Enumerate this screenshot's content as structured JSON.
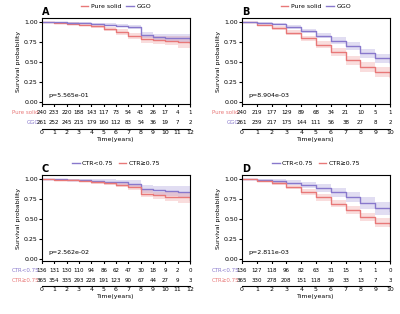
{
  "chart_data": [
    {
      "type": "step",
      "title": "A",
      "x_label": "Time(years)",
      "y_label": "Survival probability",
      "annotations": [
        "p=5.565e-01"
      ],
      "legend": "upper center",
      "xlim": [
        0,
        12
      ],
      "ylim": [
        -0.02,
        1.05
      ],
      "xticks": [
        0,
        1,
        2,
        3,
        4,
        5,
        6,
        7,
        8,
        9,
        10,
        11,
        12
      ],
      "yticks": [
        {
          "value": 0.0,
          "label": "0.00"
        },
        {
          "value": 0.25,
          "label": "0.25"
        },
        {
          "value": 0.5,
          "label": "0.50"
        },
        {
          "value": 0.75,
          "label": "0.75"
        },
        {
          "value": 1.0,
          "label": "1.00"
        }
      ],
      "x": [
        0,
        1,
        2,
        3,
        4,
        5,
        6,
        7,
        8,
        9,
        10,
        11,
        12
      ],
      "series": [
        {
          "name": "Pure solid",
          "color": "#e87878",
          "values": [
            1.0,
            0.99,
            0.98,
            0.965,
            0.945,
            0.915,
            0.875,
            0.83,
            0.785,
            0.775,
            0.765,
            0.755,
            0.735
          ],
          "ci_lower": [
            1.0,
            0.982,
            0.965,
            0.945,
            0.92,
            0.887,
            0.843,
            0.792,
            0.743,
            0.728,
            0.71,
            0.682,
            0.638
          ],
          "ci_upper": [
            1.0,
            0.998,
            0.995,
            0.985,
            0.97,
            0.943,
            0.907,
            0.868,
            0.827,
            0.822,
            0.82,
            0.828,
            0.832
          ]
        },
        {
          "name": "GGO",
          "color": "#8878cc",
          "values": [
            1.0,
            0.997,
            0.992,
            0.987,
            0.978,
            0.968,
            0.955,
            0.938,
            0.835,
            0.815,
            0.805,
            0.795,
            0.785
          ],
          "ci_lower": [
            1.0,
            0.991,
            0.982,
            0.976,
            0.964,
            0.951,
            0.933,
            0.912,
            0.798,
            0.776,
            0.762,
            0.742,
            0.718
          ],
          "ci_upper": [
            1.0,
            1.0,
            1.0,
            0.998,
            0.992,
            0.985,
            0.977,
            0.964,
            0.872,
            0.854,
            0.848,
            0.848,
            0.852
          ]
        }
      ],
      "risk_table": {
        "x": [
          0,
          1,
          2,
          3,
          4,
          5,
          6,
          7,
          8,
          9,
          10,
          11,
          12
        ],
        "rows": [
          {
            "label": "Pure solid",
            "values": [
              240,
              233,
              220,
              188,
              143,
              117,
              73,
              54,
              43,
              26,
              17,
              4,
              1
            ]
          },
          {
            "label": "GGO",
            "values": [
              261,
              252,
              245,
              215,
              179,
              160,
              112,
              83,
              54,
              36,
              19,
              7,
              2
            ]
          }
        ]
      }
    },
    {
      "type": "step",
      "title": "B",
      "x_label": "Time(years)",
      "y_label": "Survival probability",
      "annotations": [
        "p=8.904e-03"
      ],
      "legend": "upper center",
      "xlim": [
        0,
        10
      ],
      "ylim": [
        -0.02,
        1.05
      ],
      "xticks": [
        0,
        1,
        2,
        3,
        4,
        5,
        6,
        7,
        8,
        9,
        10
      ],
      "yticks": [
        {
          "value": 0.0,
          "label": "0.00"
        },
        {
          "value": 0.25,
          "label": "0.25"
        },
        {
          "value": 0.5,
          "label": "0.50"
        },
        {
          "value": 0.75,
          "label": "0.75"
        },
        {
          "value": 1.0,
          "label": "1.00"
        }
      ],
      "x": [
        0,
        1,
        2,
        3,
        4,
        5,
        6,
        7,
        8,
        9,
        10
      ],
      "series": [
        {
          "name": "Pure solid",
          "color": "#e87878",
          "values": [
            1.0,
            0.968,
            0.928,
            0.868,
            0.795,
            0.715,
            0.625,
            0.525,
            0.44,
            0.375,
            0.315
          ],
          "ci_lower": [
            1.0,
            0.952,
            0.905,
            0.839,
            0.759,
            0.672,
            0.575,
            0.47,
            0.382,
            0.31,
            0.245
          ],
          "ci_upper": [
            1.0,
            0.984,
            0.951,
            0.897,
            0.831,
            0.758,
            0.675,
            0.58,
            0.498,
            0.44,
            0.385
          ]
        },
        {
          "name": "GGO",
          "color": "#8878cc",
          "values": [
            1.0,
            0.992,
            0.972,
            0.938,
            0.888,
            0.832,
            0.768,
            0.698,
            0.612,
            0.548,
            0.492
          ],
          "ci_lower": [
            1.0,
            0.982,
            0.957,
            0.916,
            0.858,
            0.796,
            0.725,
            0.648,
            0.558,
            0.49,
            0.428
          ],
          "ci_upper": [
            1.0,
            1.0,
            0.987,
            0.96,
            0.918,
            0.868,
            0.811,
            0.748,
            0.666,
            0.606,
            0.556
          ]
        }
      ],
      "risk_table": {
        "x": [
          0,
          1,
          2,
          3,
          4,
          5,
          6,
          7,
          8,
          9,
          10
        ],
        "rows": [
          {
            "label": "Pure solid",
            "values": [
              240,
              219,
              177,
              129,
              89,
              68,
              34,
              21,
              10,
              5,
              1
            ]
          },
          {
            "label": "GGO",
            "values": [
              261,
              239,
              217,
              175,
              144,
              111,
              56,
              38,
              27,
              8,
              2
            ]
          }
        ]
      }
    },
    {
      "type": "step",
      "title": "C",
      "x_label": "Time(years)",
      "y_label": "Survival probability",
      "annotations": [
        "p=2.562e-02"
      ],
      "legend": "upper center",
      "xlim": [
        0,
        12
      ],
      "ylim": [
        -0.02,
        1.05
      ],
      "xticks": [
        0,
        1,
        2,
        3,
        4,
        5,
        6,
        7,
        8,
        9,
        10,
        11,
        12
      ],
      "yticks": [
        {
          "value": 0.0,
          "label": "0.00"
        },
        {
          "value": 0.25,
          "label": "0.25"
        },
        {
          "value": 0.5,
          "label": "0.50"
        },
        {
          "value": 0.75,
          "label": "0.75"
        },
        {
          "value": 1.0,
          "label": "1.00"
        }
      ],
      "x": [
        0,
        1,
        2,
        3,
        4,
        5,
        6,
        7,
        8,
        9,
        10,
        11,
        12
      ],
      "series": [
        {
          "name": "CTR<0.75",
          "color": "#8878cc",
          "values": [
            1.0,
            0.997,
            0.993,
            0.988,
            0.978,
            0.968,
            0.958,
            0.94,
            0.875,
            0.862,
            0.852,
            0.842,
            0.84
          ],
          "ci_lower": [
            1.0,
            0.988,
            0.978,
            0.968,
            0.952,
            0.938,
            0.922,
            0.898,
            0.822,
            0.806,
            0.79,
            0.768,
            0.748
          ],
          "ci_upper": [
            1.0,
            1.0,
            1.0,
            1.0,
            1.0,
            0.998,
            0.994,
            0.982,
            0.928,
            0.918,
            0.914,
            0.916,
            0.932
          ]
        },
        {
          "name": "CTR≥0.75",
          "color": "#e87878",
          "values": [
            1.0,
            0.992,
            0.986,
            0.977,
            0.962,
            0.946,
            0.928,
            0.899,
            0.818,
            0.798,
            0.782,
            0.772,
            0.745
          ],
          "ci_lower": [
            1.0,
            0.985,
            0.975,
            0.962,
            0.944,
            0.924,
            0.901,
            0.866,
            0.778,
            0.752,
            0.728,
            0.704,
            0.662
          ],
          "ci_upper": [
            1.0,
            0.999,
            0.997,
            0.992,
            0.98,
            0.968,
            0.955,
            0.932,
            0.858,
            0.844,
            0.836,
            0.84,
            0.828
          ]
        }
      ],
      "risk_table": {
        "x": [
          0,
          1,
          2,
          3,
          4,
          5,
          6,
          7,
          8,
          9,
          10,
          11,
          12
        ],
        "rows": [
          {
            "label": "CTR<0.75",
            "values": [
              136,
              131,
              130,
              110,
              94,
              86,
              62,
              47,
              30,
              18,
              9,
              2,
              0
            ]
          },
          {
            "label": "CTR≥0.75",
            "values": [
              365,
              354,
              335,
              293,
              228,
              191,
              123,
              90,
              67,
              44,
              27,
              9,
              3
            ]
          }
        ]
      }
    },
    {
      "type": "step",
      "title": "D",
      "x_label": "Time(years)",
      "y_label": "Survival probability",
      "annotations": [
        "p=2.811e-03"
      ],
      "legend": "upper center",
      "xlim": [
        0,
        10
      ],
      "ylim": [
        -0.02,
        1.05
      ],
      "xticks": [
        0,
        1,
        2,
        3,
        4,
        5,
        6,
        7,
        8,
        9,
        10
      ],
      "yticks": [
        {
          "value": 0.0,
          "label": "0.00"
        },
        {
          "value": 0.25,
          "label": "0.25"
        },
        {
          "value": 0.5,
          "label": "0.50"
        },
        {
          "value": 0.75,
          "label": "0.75"
        },
        {
          "value": 1.0,
          "label": "1.00"
        }
      ],
      "x": [
        0,
        1,
        2,
        3,
        4,
        5,
        6,
        7,
        8,
        9,
        10
      ],
      "series": [
        {
          "name": "CTR<0.75",
          "color": "#8878cc",
          "values": [
            1.0,
            0.992,
            0.978,
            0.955,
            0.925,
            0.885,
            0.838,
            0.778,
            0.698,
            0.638,
            0.598
          ],
          "ci_lower": [
            1.0,
            0.978,
            0.956,
            0.924,
            0.886,
            0.838,
            0.782,
            0.712,
            0.625,
            0.558,
            0.502
          ],
          "ci_upper": [
            1.0,
            1.0,
            1.0,
            0.986,
            0.964,
            0.932,
            0.894,
            0.844,
            0.771,
            0.718,
            0.694
          ]
        },
        {
          "name": "CTR≥0.75",
          "color": "#e87878",
          "values": [
            1.0,
            0.975,
            0.945,
            0.898,
            0.838,
            0.772,
            0.695,
            0.612,
            0.525,
            0.458,
            0.415
          ],
          "ci_lower": [
            1.0,
            0.96,
            0.924,
            0.87,
            0.804,
            0.732,
            0.65,
            0.562,
            0.472,
            0.398,
            0.345
          ],
          "ci_upper": [
            1.0,
            0.99,
            0.966,
            0.926,
            0.872,
            0.812,
            0.74,
            0.662,
            0.578,
            0.518,
            0.485
          ]
        }
      ],
      "risk_table": {
        "x": [
          0,
          1,
          2,
          3,
          4,
          5,
          6,
          7,
          8,
          9,
          10
        ],
        "rows": [
          {
            "label": "CTR<0.75",
            "values": [
              136,
              127,
              118,
              96,
              82,
              63,
              31,
              15,
              5,
              1,
              0
            ]
          },
          {
            "label": "CTR≥0.75",
            "values": [
              365,
              330,
              278,
              208,
              151,
              118,
              59,
              33,
              13,
              7,
              3
            ]
          }
        ]
      }
    }
  ]
}
